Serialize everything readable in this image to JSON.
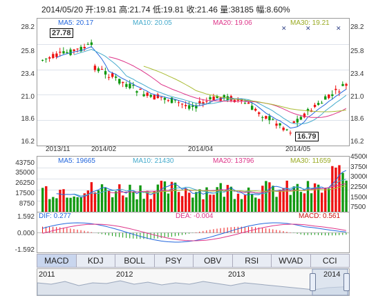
{
  "header": {
    "date": "2014/05/20",
    "open": "开:19.81",
    "high": "高:21.74",
    "low": "低:19.81",
    "close": "收:21.46",
    "volume": "量:38185",
    "amplitude": "幅:8.60%"
  },
  "price_axis": [
    "28.2",
    "25.8",
    "23.4",
    "21.0",
    "18.6",
    "16.2"
  ],
  "price_legend": {
    "ma5": "MA5: 20.17",
    "ma10": "MA10: 20.05",
    "ma20": "MA20: 19.06",
    "ma30": "MA30: 19.21"
  },
  "callouts": {
    "high": "27.78",
    "low": "16.79"
  },
  "date_labels": [
    "2013/11",
    "2014/02",
    "2014/04",
    "2014/05"
  ],
  "volume_axis": [
    "43750",
    "35000",
    "26250",
    "17500",
    "8750"
  ],
  "volume_axis_right": [
    "37500",
    "30000",
    "22500",
    "15000",
    "7500"
  ],
  "volume_axis_right_top": "45000",
  "volume_legend": {
    "ma5": "MA5: 19665",
    "ma10": "MA10: 21430",
    "ma20": "MA20: 13796",
    "ma30": "MA30: 11659"
  },
  "macd_axis": [
    "1.592",
    "0.000",
    "-1.592"
  ],
  "macd_legend": {
    "dif": "DIF: 0.277",
    "dea": "DEA: -0.004",
    "macd": "MACD: 0.561"
  },
  "tabs": [
    "MACD",
    "KDJ",
    "BOLL",
    "PSY",
    "OBV",
    "RSI",
    "WVAD",
    "CCI"
  ],
  "navigator_years": [
    "2011",
    "2012",
    "2013",
    "2014"
  ],
  "colors": {
    "up": "#ee1111",
    "down": "#119911",
    "ma5": "#2266dd",
    "ma10": "#44aacc",
    "ma20": "#dd3388",
    "ma30": "#aabb33"
  }
}
